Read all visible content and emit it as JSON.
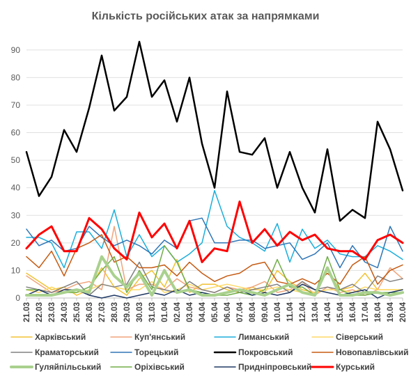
{
  "chart_data": {
    "type": "line",
    "title": "Кількість російських атак за напрямками",
    "xlabel": "",
    "ylabel": "",
    "ylim": [
      0,
      95
    ],
    "yticks": [
      0,
      10,
      20,
      30,
      40,
      50,
      60,
      70,
      80,
      90
    ],
    "grid": "horizontal",
    "legend_position": "bottom",
    "categories": [
      "21.03",
      "22.03",
      "23.03",
      "24.03",
      "25.03",
      "26.03",
      "27.03",
      "28.03",
      "29.03",
      "30.03",
      "31.03",
      "01.04",
      "02.04",
      "03.04",
      "04.04",
      "05.04",
      "06.04",
      "07.04",
      "08.04",
      "09.04",
      "10.04",
      "11.04",
      "12.04",
      "13.04",
      "14.04",
      "15.04",
      "16.04",
      "17.04",
      "18.04",
      "19.04",
      "20.04"
    ],
    "series": [
      {
        "name": "Харківський",
        "color": "#F2C233",
        "width": 1.5,
        "values": [
          9,
          6,
          3,
          4,
          1,
          3,
          11,
          4,
          1,
          7,
          10,
          4,
          14,
          2,
          5,
          5,
          3,
          2,
          4,
          2,
          10,
          6,
          3,
          2,
          10,
          3,
          4,
          9,
          3,
          3,
          3
        ]
      },
      {
        "name": "Куп'янський",
        "color": "#F0A47A",
        "width": 1.5,
        "values": [
          8,
          5,
          2,
          3,
          5,
          6,
          3,
          26,
          3,
          5,
          5,
          3,
          7,
          4,
          3,
          2,
          4,
          3,
          4,
          6,
          2,
          3,
          6,
          1,
          4,
          2,
          3,
          1,
          3,
          11,
          7
        ]
      },
      {
        "name": "Лиманський",
        "color": "#1BAEDB",
        "width": 1.5,
        "values": [
          22,
          22,
          20,
          11,
          24,
          24,
          18,
          32,
          15,
          23,
          15,
          19,
          13,
          16,
          20,
          39,
          26,
          22,
          20,
          17,
          27,
          13,
          25,
          18,
          21,
          16,
          15,
          15,
          19,
          17,
          14
        ]
      },
      {
        "name": "Сіверський",
        "color": "#FFD966",
        "width": 1.5,
        "values": [
          3,
          2,
          4,
          2,
          2,
          3,
          5,
          4,
          3,
          3,
          6,
          2,
          3,
          5,
          3,
          4,
          5,
          4,
          3,
          3,
          4,
          3,
          2,
          2,
          3,
          3,
          2,
          4,
          3,
          3,
          3
        ]
      },
      {
        "name": "Краматорський",
        "color": "#808080",
        "width": 1.5,
        "values": [
          4,
          3,
          2,
          4,
          6,
          1,
          5,
          4,
          5,
          13,
          4,
          3,
          2,
          6,
          3,
          2,
          4,
          2,
          3,
          4,
          5,
          2,
          6,
          3,
          4,
          3,
          5,
          2,
          8,
          6,
          7
        ]
      },
      {
        "name": "Торецький",
        "color": "#2E75B6",
        "width": 1.5,
        "values": [
          25,
          19,
          21,
          17,
          18,
          26,
          22,
          19,
          21,
          19,
          16,
          21,
          18,
          28,
          29,
          20,
          20,
          21,
          21,
          18,
          19,
          20,
          14,
          16,
          20,
          11,
          19,
          13,
          11,
          26,
          17
        ]
      },
      {
        "name": "Покровський",
        "color": "#000000",
        "width": 2.5,
        "values": [
          53,
          37,
          44,
          61,
          53,
          69,
          88,
          68,
          73,
          93,
          73,
          79,
          64,
          80,
          56,
          40,
          75,
          53,
          52,
          58,
          40,
          53,
          40,
          31,
          54,
          28,
          32,
          29,
          64,
          54,
          39
        ]
      },
      {
        "name": "Новопавлівський",
        "color": "#C55A11",
        "width": 1.5,
        "values": [
          15,
          11,
          17,
          8,
          18,
          20,
          23,
          13,
          15,
          11,
          11,
          12,
          8,
          13,
          9,
          6,
          8,
          9,
          12,
          13,
          6,
          5,
          7,
          5,
          9,
          5,
          12,
          15,
          5,
          10,
          12
        ]
      },
      {
        "name": "Гуляйпільський",
        "color": "#A9D18E",
        "width": 4,
        "values": [
          1,
          1,
          1,
          2,
          3,
          2,
          15,
          8,
          4,
          9,
          1,
          10,
          2,
          3,
          1,
          1,
          2,
          3,
          2,
          1,
          3,
          5,
          2,
          1,
          11,
          1,
          1,
          2,
          2,
          1,
          2
        ]
      },
      {
        "name": "Оріхівський",
        "color": "#70AD47",
        "width": 1.5,
        "values": [
          3,
          3,
          1,
          2,
          2,
          4,
          10,
          15,
          2,
          10,
          3,
          19,
          13,
          3,
          2,
          1,
          1,
          2,
          1,
          3,
          14,
          4,
          4,
          1,
          15,
          3,
          1,
          1,
          2,
          2,
          2
        ]
      },
      {
        "name": "Придніпровський",
        "color": "#1F3864",
        "width": 1.5,
        "values": [
          1,
          3,
          1,
          3,
          3,
          1,
          0,
          1,
          0,
          1,
          2,
          1,
          3,
          1,
          2,
          1,
          2,
          3,
          1,
          2,
          1,
          2,
          5,
          3,
          2,
          1,
          2,
          3,
          0,
          2,
          3
        ]
      },
      {
        "name": "Курський",
        "color": "#FF0000",
        "width": 3,
        "values": [
          18,
          23,
          26,
          17,
          17,
          29,
          25,
          18,
          14,
          31,
          22,
          27,
          18,
          28,
          13,
          18,
          17,
          35,
          20,
          25,
          19,
          24,
          21,
          23,
          18,
          17,
          17,
          14,
          21,
          23,
          20
        ]
      }
    ]
  }
}
